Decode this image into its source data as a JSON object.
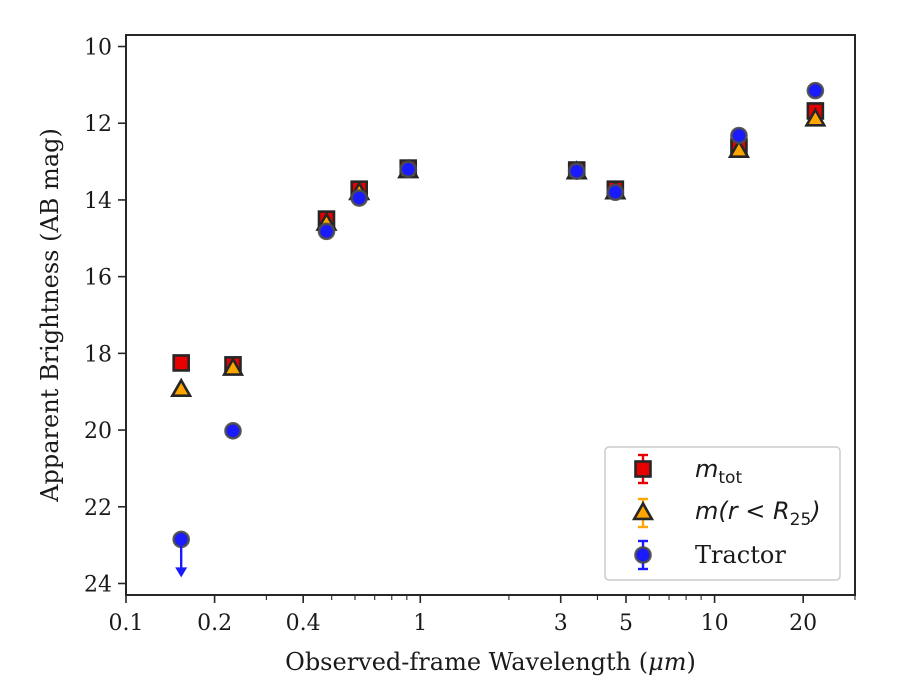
{
  "chart_data": {
    "type": "scatter",
    "xlabel": "Observed-frame Wavelength (",
    "xlabel_unit": "μm",
    "xlabel_end": ")",
    "ylabel": "Apparent Brightness (AB mag)",
    "x_scale": "log",
    "xlim": [
      0.1,
      30
    ],
    "ylim": [
      24.3,
      9.7
    ],
    "y_inverted": true,
    "x_ticks": [
      {
        "value": 0.1,
        "label": "0.1"
      },
      {
        "value": 0.2,
        "label": "0.2"
      },
      {
        "value": 0.4,
        "label": "0.4"
      },
      {
        "value": 1,
        "label": "1"
      },
      {
        "value": 3,
        "label": "3"
      },
      {
        "value": 5,
        "label": "5"
      },
      {
        "value": 10,
        "label": "10"
      },
      {
        "value": 20,
        "label": "20"
      }
    ],
    "x_minor_ticks": [
      0.3,
      0.5,
      0.6,
      0.7,
      0.8,
      0.9,
      2,
      4,
      6,
      7,
      8,
      9,
      30
    ],
    "y_ticks": [
      {
        "value": 10,
        "label": "10"
      },
      {
        "value": 12,
        "label": "12"
      },
      {
        "value": 14,
        "label": "14"
      },
      {
        "value": 16,
        "label": "16"
      },
      {
        "value": 18,
        "label": "18"
      },
      {
        "value": 20,
        "label": "20"
      },
      {
        "value": 22,
        "label": "22"
      },
      {
        "value": 24,
        "label": "24"
      }
    ],
    "grid": false,
    "legend_position": "lower-right",
    "series": [
      {
        "key": "mtot",
        "name_main": "m",
        "name_sub": "tot",
        "marker": "square",
        "color": "#e60000",
        "errcolor": "#e60000",
        "x": [
          0.154,
          0.231,
          0.48,
          0.62,
          0.91,
          3.4,
          4.6,
          12.1,
          22.0
        ],
        "y": [
          18.25,
          18.3,
          14.5,
          13.72,
          13.17,
          13.22,
          13.72,
          12.62,
          11.68
        ]
      },
      {
        "key": "mr25",
        "name_main": "m(r < R",
        "name_sub": "25",
        "name_end": ")",
        "marker": "triangle",
        "color": "#ffa500",
        "errcolor": "#ffa500",
        "x": [
          0.154,
          0.231,
          0.48,
          0.62,
          0.91,
          3.4,
          4.6,
          12.1,
          22.0
        ],
        "y": [
          18.95,
          18.4,
          14.62,
          13.82,
          13.25,
          13.28,
          13.8,
          12.72,
          11.9
        ]
      },
      {
        "key": "tractor",
        "name": "Tractor",
        "marker": "circle",
        "color": "#1a1aff",
        "errcolor": "#1a1aff",
        "x": [
          0.154,
          0.231,
          0.48,
          0.62,
          0.91,
          3.4,
          4.6,
          12.1,
          22.0
        ],
        "y": [
          22.85,
          20.02,
          14.82,
          13.95,
          13.2,
          13.25,
          13.8,
          12.32,
          11.15
        ],
        "upper_limit": [
          true,
          false,
          false,
          false,
          false,
          false,
          false,
          false,
          false
        ]
      }
    ],
    "marker_edge_color": "#262626"
  }
}
